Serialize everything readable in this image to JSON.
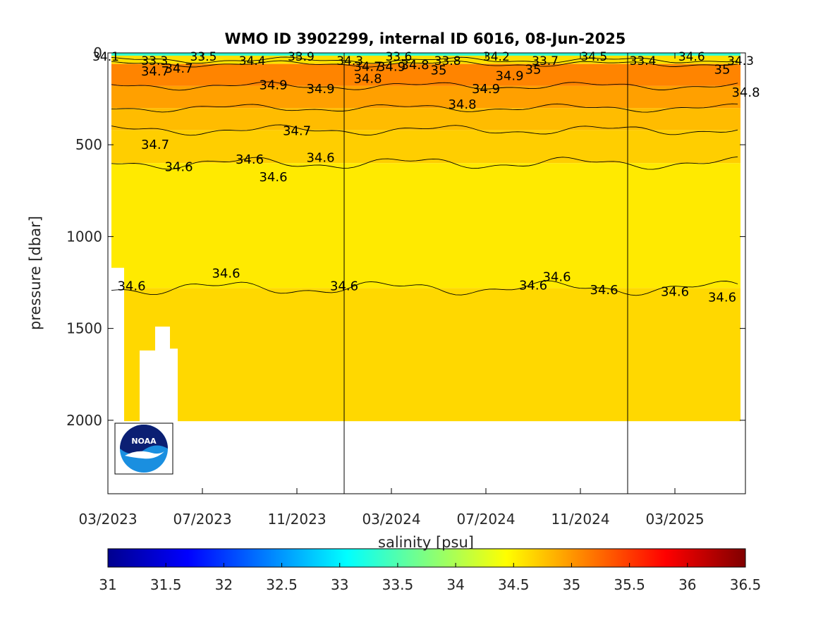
{
  "chart_data": {
    "type": "heatmap",
    "title": "WMO ID 3902299, internal ID 6016, 08-Jun-2025",
    "ylabel": "pressure [dbar]",
    "colorbar_label": "salinity [psu]",
    "x_tick_labels": [
      "03/2023",
      "07/2023",
      "11/2023",
      "03/2024",
      "07/2024",
      "11/2024",
      "03/2025"
    ],
    "y_ticks": [
      0,
      500,
      1000,
      1500,
      2000
    ],
    "y_tick_labels": [
      "0",
      "500",
      "1000",
      "1500",
      "2000"
    ],
    "ylim": [
      2400,
      0
    ],
    "ylim_note": "axis runs from 0 at top to about 2400 dbar at bottom",
    "colorbar_ticks": [
      31,
      31.5,
      32,
      32.5,
      33,
      33.5,
      34,
      34.5,
      35,
      35.5,
      36,
      36.5
    ],
    "colorbar_tick_labels": [
      "31",
      "31.5",
      "32",
      "32.5",
      "33",
      "33.5",
      "34",
      "34.5",
      "35",
      "35.5",
      "36",
      "36.5"
    ],
    "colormap": "jet",
    "clim": [
      31,
      36.5
    ],
    "vertical_markers": [
      "01/2024",
      "01/2025"
    ],
    "layers": [
      {
        "p_top": 0,
        "p_bottom": 15,
        "salinity": 33.3
      },
      {
        "p_top": 15,
        "p_bottom": 60,
        "salinity": 34.6
      },
      {
        "p_top": 60,
        "p_bottom": 180,
        "salinity": 35.1
      },
      {
        "p_top": 180,
        "p_bottom": 300,
        "salinity": 34.95
      },
      {
        "p_top": 300,
        "p_bottom": 420,
        "salinity": 34.8
      },
      {
        "p_top": 420,
        "p_bottom": 600,
        "salinity": 34.7
      },
      {
        "p_top": 600,
        "p_bottom": 1280,
        "salinity": 34.55
      },
      {
        "p_top": 1280,
        "p_bottom": 2005,
        "salinity": 34.65
      }
    ],
    "contour_labels": [
      {
        "text": "34.7",
        "x": "05/2023",
        "y": 100
      },
      {
        "text": "34.7",
        "x": "06/2023",
        "y": 85
      },
      {
        "text": "34.9",
        "x": "10/2023",
        "y": 175
      },
      {
        "text": "34.9",
        "x": "12/2023",
        "y": 195
      },
      {
        "text": "34.8",
        "x": "02/2024",
        "y": 140
      },
      {
        "text": "34.7",
        "x": "02/2024",
        "y": 75
      },
      {
        "text": "34.9",
        "x": "03/2024",
        "y": 75
      },
      {
        "text": "34.8",
        "x": "04/2024",
        "y": 65
      },
      {
        "text": "35",
        "x": "05/2024",
        "y": 95
      },
      {
        "text": "34.9",
        "x": "08/2024",
        "y": 125
      },
      {
        "text": "34.9",
        "x": "07/2024",
        "y": 195
      },
      {
        "text": "34.8",
        "x": "06/2024",
        "y": 280
      },
      {
        "text": "35",
        "x": "09/2024",
        "y": 90
      },
      {
        "text": "35",
        "x": "05/2025",
        "y": 90
      },
      {
        "text": "34.8",
        "x": "06/2025",
        "y": 215
      },
      {
        "text": "34.7",
        "x": "11/2023",
        "y": 425
      },
      {
        "text": "34.7",
        "x": "05/2023",
        "y": 500
      },
      {
        "text": "34.6",
        "x": "06/2023",
        "y": 620
      },
      {
        "text": "34.6",
        "x": "09/2023",
        "y": 580
      },
      {
        "text": "34.6",
        "x": "10/2023",
        "y": 675
      },
      {
        "text": "34.6",
        "x": "12/2023",
        "y": 570
      },
      {
        "text": "34.6",
        "x": "04/2023",
        "y": 1270
      },
      {
        "text": "34.6",
        "x": "08/2023",
        "y": 1200
      },
      {
        "text": "34.6",
        "x": "01/2024",
        "y": 1270
      },
      {
        "text": "34.6",
        "x": "09/2024",
        "y": 1265
      },
      {
        "text": "34.6",
        "x": "10/2024",
        "y": 1220
      },
      {
        "text": "34.6",
        "x": "12/2024",
        "y": 1290
      },
      {
        "text": "34.6",
        "x": "03/2025",
        "y": 1300
      },
      {
        "text": "34.6",
        "x": "05/2025",
        "y": 1330
      }
    ],
    "surface_labels": [
      "34.1",
      "33.3",
      "33.5",
      "34.4",
      "33.9",
      "34.3",
      "33.6",
      "33.8",
      "34.2",
      "33.7",
      "34.5",
      "33.4",
      "34.6",
      "34.3"
    ]
  },
  "logo": {
    "text": "NOAA",
    "colors": {
      "navy": "#0b1f73",
      "blue": "#1a8fe0",
      "white": "#ffffff"
    }
  }
}
